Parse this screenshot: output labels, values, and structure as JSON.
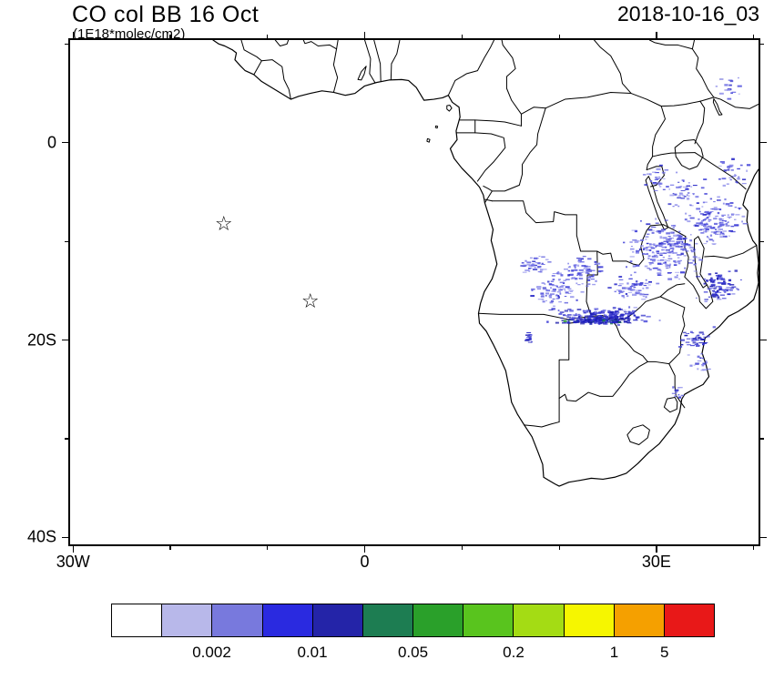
{
  "header": {
    "title": "CO col BB 16 Oct",
    "units": "(1E18*molec/cm2)",
    "timestamp": "2018-10-16_03"
  },
  "markers": [
    {
      "name": "island-star-1",
      "glyph": "☆",
      "lon": -14.5,
      "lat": -8.4
    },
    {
      "name": "island-star-2",
      "glyph": "☆",
      "lon": -5.6,
      "lat": -16.3
    }
  ],
  "colorbar": {
    "colors": [
      "#ffffff",
      "#b8b8ea",
      "#7879dd",
      "#2a2ae0",
      "#2424a8",
      "#1d7d52",
      "#2aa02a",
      "#59c41e",
      "#a4dc14",
      "#f6f600",
      "#f5a000",
      "#e81818"
    ],
    "labels": [
      {
        "text": "0.002",
        "boundary": 2
      },
      {
        "text": "0.01",
        "boundary": 4
      },
      {
        "text": "0.05",
        "boundary": 6
      },
      {
        "text": "0.2",
        "boundary": 8
      },
      {
        "text": "1",
        "boundary": 10
      },
      {
        "text": "5",
        "boundary": 11
      }
    ]
  },
  "chart_data": {
    "type": "heatmap",
    "title": "CO col BB 16 Oct",
    "units": "1E18*molec/cm2",
    "timestamp": "2018-10-16_03",
    "region": "Africa",
    "extent": {
      "lon": [
        -30.3,
        40.5
      ],
      "lat": [
        -40.7,
        10.4
      ]
    },
    "x_ticks": [
      {
        "label": "30W",
        "lon": -30
      },
      {
        "label": "0",
        "lon": 0
      },
      {
        "label": "30E",
        "lon": 30
      }
    ],
    "y_ticks": [
      {
        "label": "0",
        "lat": 0
      },
      {
        "label": "20S",
        "lat": -20
      },
      {
        "label": "40S",
        "lat": -40
      }
    ],
    "x_minor": [
      -20,
      -10,
      10,
      20,
      40
    ],
    "y_minor": [
      10,
      -10,
      -30
    ],
    "colorbar_values": [
      "0.002",
      "0.01",
      "0.05",
      "0.2",
      "1",
      "5"
    ],
    "legend_position": "bottom",
    "palettes": {
      "light": [
        [
          "#8e8eea",
          0.3
        ],
        [
          "#6a6ae2",
          0.3
        ],
        [
          "#4545d8",
          0.25
        ],
        [
          "#2b2bc8",
          0.15
        ]
      ],
      "core": [
        [
          "#4545d8",
          0.3
        ],
        [
          "#2b2bc8",
          0.3
        ],
        [
          "#1b1bb4",
          0.25
        ],
        [
          "#6a6ae2",
          0.15
        ]
      ],
      "streak": [
        [
          "#2222c2",
          0.4
        ],
        [
          "#1414a6",
          0.3
        ],
        [
          "#15704c",
          0.12
        ],
        [
          "#2aa02a",
          0.06
        ],
        [
          "#4545d8",
          0.12
        ]
      ]
    },
    "hotspot_clusters": [
      {
        "lon": 24.5,
        "lat": -17.6,
        "rx": 6.5,
        "ry": 1.2,
        "n": 200,
        "palette": "core"
      },
      {
        "lon": 31.0,
        "lat": -11.0,
        "rx": 5.0,
        "ry": 3.8,
        "n": 230,
        "palette": "light"
      },
      {
        "lon": 36.0,
        "lat": -8.0,
        "rx": 3.5,
        "ry": 3.2,
        "n": 150,
        "palette": "light"
      },
      {
        "lon": 19.5,
        "lat": -15.0,
        "rx": 3.2,
        "ry": 2.2,
        "n": 80,
        "palette": "light"
      },
      {
        "lon": 22.5,
        "lat": -13.0,
        "rx": 3.0,
        "ry": 2.0,
        "n": 70,
        "palette": "light"
      },
      {
        "lon": 36.5,
        "lat": -14.5,
        "rx": 2.8,
        "ry": 2.2,
        "n": 90,
        "palette": "core"
      },
      {
        "lon": 33.0,
        "lat": -5.0,
        "rx": 3.0,
        "ry": 2.4,
        "n": 50,
        "palette": "light"
      },
      {
        "lon": 38.0,
        "lat": -3.0,
        "rx": 2.2,
        "ry": 2.0,
        "n": 30,
        "palette": "light"
      },
      {
        "lon": 27.5,
        "lat": -14.8,
        "rx": 2.8,
        "ry": 1.8,
        "n": 60,
        "palette": "light"
      },
      {
        "lon": 34.0,
        "lat": -19.8,
        "rx": 2.4,
        "ry": 1.4,
        "n": 45,
        "palette": "core"
      },
      {
        "lon": 24.0,
        "lat": -18.0,
        "rx": 4.5,
        "ry": 0.45,
        "n": 130,
        "palette": "streak"
      },
      {
        "lon": 16.9,
        "lat": -19.8,
        "rx": 0.6,
        "ry": 0.8,
        "n": 16,
        "palette": "core"
      },
      {
        "lon": 37.5,
        "lat": 5.5,
        "rx": 2.0,
        "ry": 1.5,
        "n": 16,
        "palette": "light"
      },
      {
        "lon": 32.3,
        "lat": -25.3,
        "rx": 1.2,
        "ry": 1.0,
        "n": 12,
        "palette": "light"
      },
      {
        "lon": 34.5,
        "lat": -22.5,
        "rx": 1.5,
        "ry": 1.5,
        "n": 20,
        "palette": "light"
      },
      {
        "lon": 17.5,
        "lat": -12.5,
        "rx": 2.0,
        "ry": 1.6,
        "n": 40,
        "palette": "light"
      },
      {
        "lon": 30.0,
        "lat": -3.5,
        "rx": 1.8,
        "ry": 1.6,
        "n": 25,
        "palette": "light"
      }
    ]
  }
}
